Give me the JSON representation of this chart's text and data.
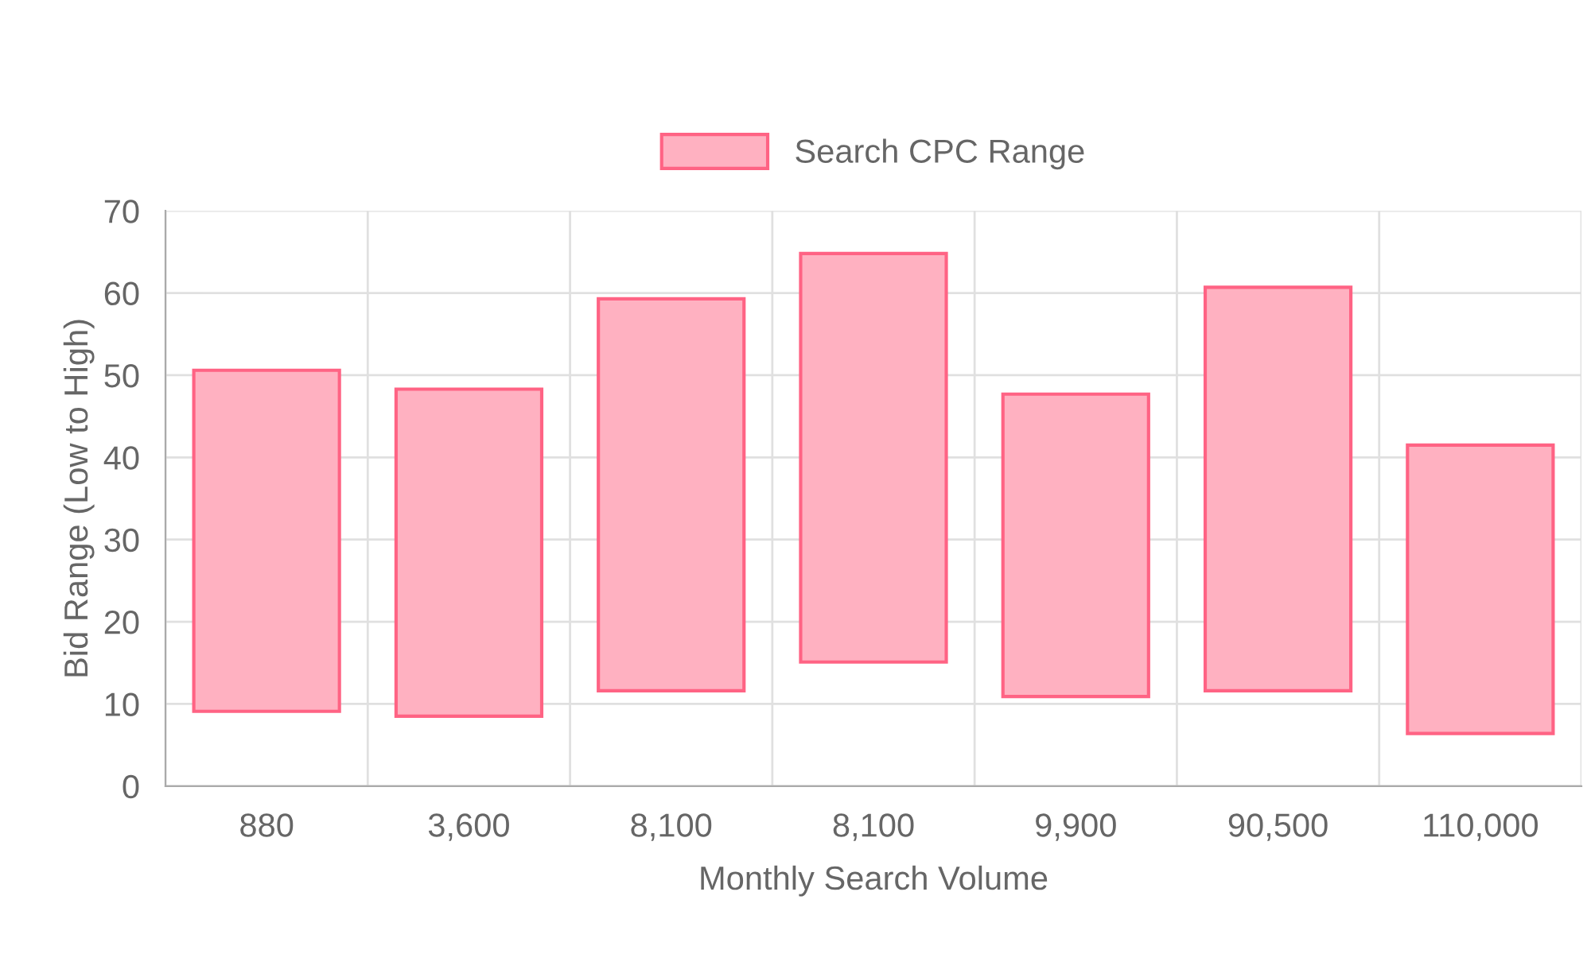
{
  "chart_data": {
    "type": "bar",
    "xlabel": "Monthly Search Volume",
    "ylabel": "Bid Range (Low to High)",
    "categories": [
      "880",
      "3,600",
      "8,100",
      "8,100",
      "9,900",
      "90,500",
      "110,000"
    ],
    "series": [
      {
        "name": "Search CPC Range",
        "color": "#ffb1c1",
        "values": [
          41.5,
          39.8,
          47.7,
          49.7,
          36.8,
          49.1,
          35.1
        ],
        "base": [
          9.1,
          8.5,
          11.6,
          15.1,
          10.9,
          11.6,
          6.4
        ]
      }
    ],
    "ylim": [
      0,
      70
    ],
    "yticks": [
      0,
      10,
      20,
      30,
      40,
      50,
      60,
      70
    ],
    "grid": true,
    "legend": "top"
  }
}
